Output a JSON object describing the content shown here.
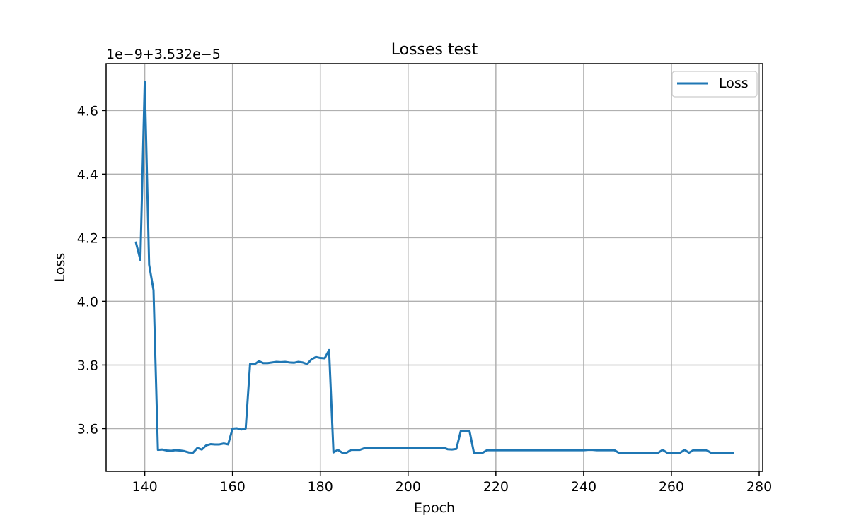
{
  "chart_data": {
    "type": "line",
    "title": "Losses test",
    "xlabel": "Epoch",
    "ylabel": "Loss",
    "offset_label": "1e−9+3.532e−5",
    "xlim": [
      131.2,
      280.8
    ],
    "ylim": [
      3.4655,
      4.7475
    ],
    "xticks": [
      140,
      160,
      180,
      200,
      220,
      240,
      260,
      280
    ],
    "xtick_labels": [
      "140",
      "160",
      "180",
      "200",
      "220",
      "240",
      "260",
      "280"
    ],
    "yticks": [
      3.6,
      3.8,
      4.0,
      4.2,
      4.4,
      4.6
    ],
    "ytick_labels": [
      "3.6",
      "3.8",
      "4.0",
      "4.2",
      "4.4",
      "4.6"
    ],
    "grid": true,
    "legend_position": "top-right",
    "series": [
      {
        "name": "Loss",
        "color": "#1f77b4",
        "x": [
          138,
          139,
          140,
          141,
          142,
          143,
          144,
          145,
          146,
          147,
          148,
          149,
          150,
          151,
          152,
          153,
          154,
          155,
          156,
          157,
          158,
          159,
          160,
          161,
          162,
          163,
          164,
          165,
          166,
          167,
          168,
          169,
          170,
          171,
          172,
          173,
          174,
          175,
          176,
          177,
          178,
          179,
          180,
          181,
          182,
          183,
          184,
          185,
          186,
          187,
          188,
          189,
          190,
          191,
          192,
          193,
          194,
          195,
          196,
          197,
          198,
          199,
          200,
          201,
          202,
          203,
          204,
          205,
          206,
          207,
          208,
          209,
          210,
          211,
          212,
          213,
          214,
          215,
          216,
          217,
          218,
          219,
          220,
          221,
          222,
          223,
          224,
          225,
          226,
          227,
          228,
          229,
          230,
          231,
          232,
          233,
          234,
          235,
          236,
          237,
          238,
          239,
          240,
          241,
          242,
          243,
          244,
          245,
          246,
          247,
          248,
          249,
          250,
          251,
          252,
          253,
          254,
          255,
          256,
          257,
          258,
          259,
          260,
          261,
          262,
          263,
          264,
          265,
          266,
          267,
          268,
          269,
          270,
          271,
          272,
          273,
          274
        ],
        "y": [
          4.185,
          4.13,
          4.69,
          4.115,
          4.035,
          3.533,
          3.534,
          3.531,
          3.53,
          3.532,
          3.531,
          3.529,
          3.525,
          3.524,
          3.539,
          3.534,
          3.547,
          3.551,
          3.55,
          3.55,
          3.553,
          3.55,
          3.6,
          3.601,
          3.597,
          3.6,
          3.803,
          3.802,
          3.812,
          3.806,
          3.806,
          3.808,
          3.81,
          3.809,
          3.81,
          3.808,
          3.807,
          3.81,
          3.808,
          3.803,
          3.818,
          3.825,
          3.822,
          3.821,
          3.847,
          3.525,
          3.533,
          3.524,
          3.524,
          3.533,
          3.533,
          3.533,
          3.538,
          3.539,
          3.539,
          3.538,
          3.538,
          3.538,
          3.538,
          3.538,
          3.539,
          3.539,
          3.539,
          3.54,
          3.539,
          3.54,
          3.539,
          3.54,
          3.54,
          3.54,
          3.54,
          3.535,
          3.534,
          3.536,
          3.592,
          3.592,
          3.592,
          3.524,
          3.524,
          3.524,
          3.532,
          3.532,
          3.532,
          3.532,
          3.532,
          3.532,
          3.532,
          3.532,
          3.532,
          3.532,
          3.532,
          3.532,
          3.532,
          3.532,
          3.532,
          3.532,
          3.532,
          3.532,
          3.532,
          3.532,
          3.532,
          3.532,
          3.532,
          3.533,
          3.533,
          3.532,
          3.532,
          3.532,
          3.532,
          3.532,
          3.524,
          3.524,
          3.524,
          3.524,
          3.524,
          3.524,
          3.524,
          3.524,
          3.524,
          3.524,
          3.533,
          3.524,
          3.524,
          3.524,
          3.524,
          3.533,
          3.524,
          3.532,
          3.532,
          3.532,
          3.532,
          3.524,
          3.524,
          3.524,
          3.524,
          3.524,
          3.524
        ]
      }
    ]
  }
}
